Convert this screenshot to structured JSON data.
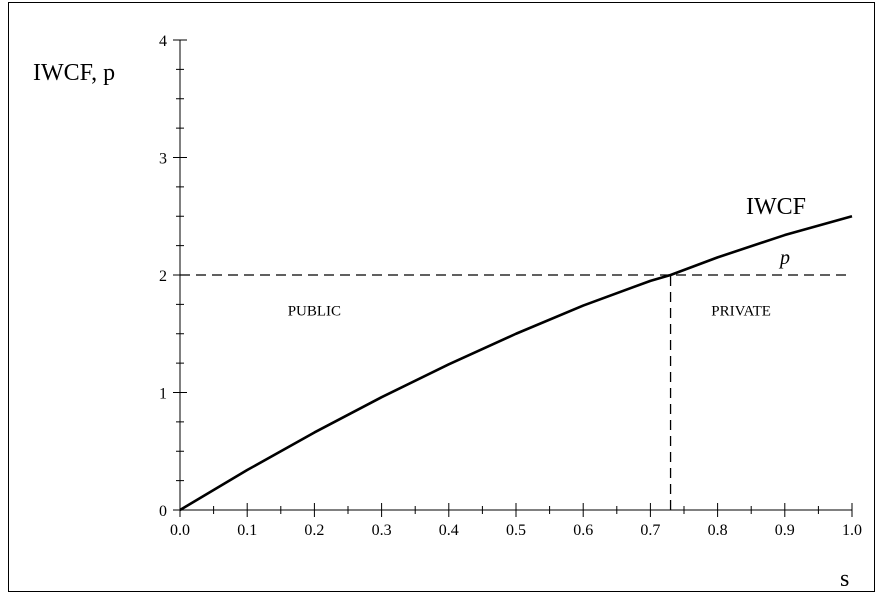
{
  "chart_data": {
    "type": "line",
    "title": "",
    "ylabel": "IWCF, p",
    "xlabel": "s",
    "xlim": [
      0,
      1
    ],
    "ylim": [
      0,
      4
    ],
    "x_ticks": [
      "0.0",
      "0.1",
      "0.2",
      "0.3",
      "0.4",
      "0.5",
      "0.6",
      "0.7",
      "0.8",
      "0.9",
      "1.0"
    ],
    "y_ticks": [
      "0",
      "1",
      "2",
      "3",
      "4"
    ],
    "series": [
      {
        "name": "IWCF",
        "style": "solid",
        "x": [
          0.0,
          0.1,
          0.2,
          0.3,
          0.4,
          0.5,
          0.6,
          0.7,
          0.73,
          0.8,
          0.9,
          1.0
        ],
        "y": [
          0.0,
          0.34,
          0.66,
          0.96,
          1.24,
          1.5,
          1.74,
          1.95,
          2.0,
          2.15,
          2.34,
          2.5
        ]
      },
      {
        "name": "p",
        "style": "dashed",
        "x": [
          0.0,
          1.0
        ],
        "y": [
          2.0,
          2.0
        ]
      }
    ],
    "vertical_marker": {
      "x": 0.73,
      "y_from": 0,
      "y_to": 2.0,
      "style": "dashed"
    },
    "annotations": [
      {
        "text": "PUBLIC",
        "x": 0.2,
        "y": 1.8
      },
      {
        "text": "PRIVATE",
        "x": 0.835,
        "y": 1.8
      }
    ],
    "colors": {
      "line": "#000000",
      "background": "#ffffff"
    }
  }
}
